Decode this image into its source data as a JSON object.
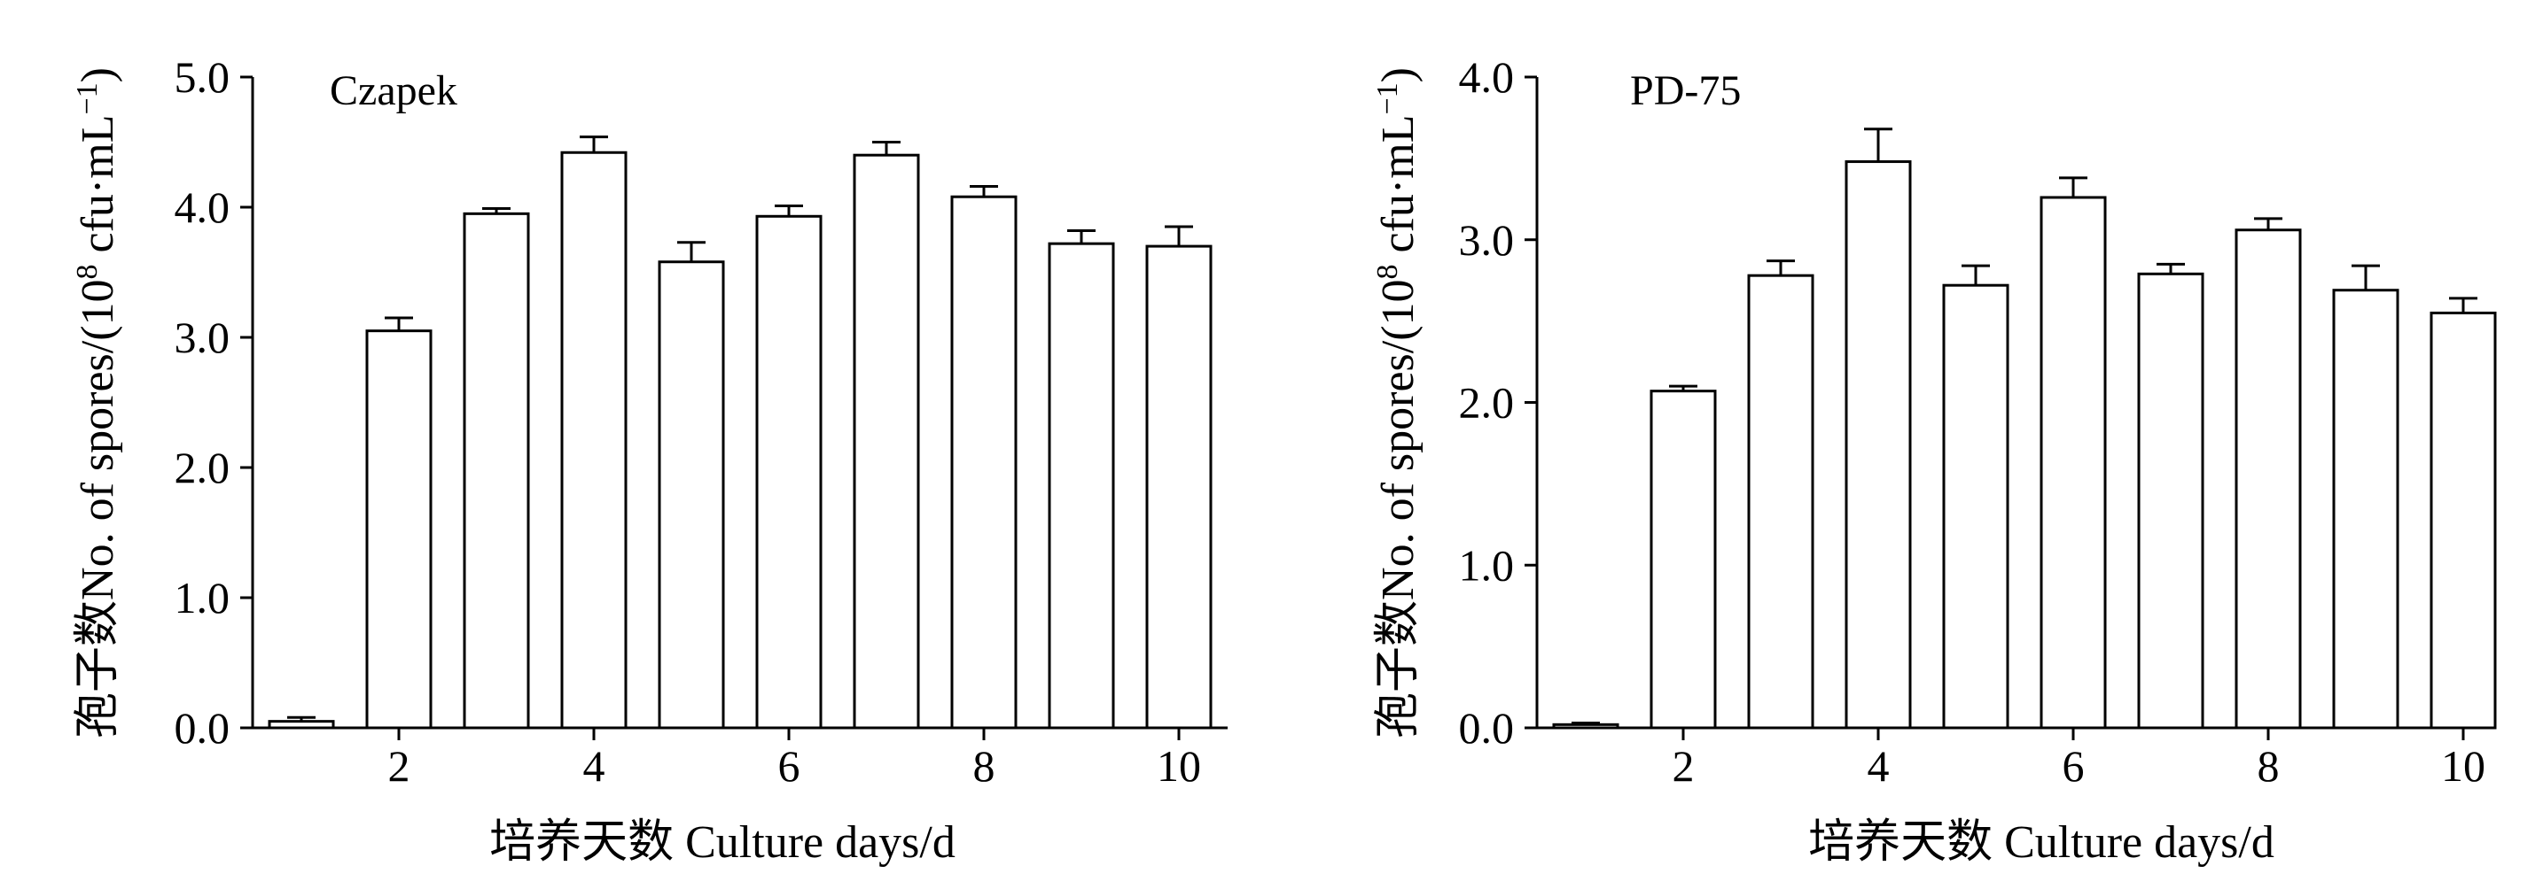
{
  "colors": {
    "bar_fill": "#ffffff",
    "stroke": "#000000",
    "background": "#ffffff"
  },
  "chart_data": [
    {
      "type": "bar",
      "panel_label": "Czapek",
      "ylabel_cn": "孢子数",
      "ylabel_en": "No. of spores/(10",
      "ylabel_exp": "8",
      "ylabel_unit": " cfu·mL",
      "ylabel_unit_exp": "−1",
      "ylabel_close": ")",
      "xlabel": "培养天数  Culture days/d",
      "categories": [
        1,
        2,
        3,
        4,
        5,
        6,
        7,
        8,
        9,
        10
      ],
      "values": [
        0.05,
        3.05,
        3.95,
        4.42,
        3.58,
        3.93,
        4.4,
        4.08,
        3.72,
        3.7
      ],
      "errors": [
        0.03,
        0.1,
        0.04,
        0.12,
        0.15,
        0.08,
        0.1,
        0.08,
        0.1,
        0.15
      ],
      "ylim": [
        0,
        5
      ],
      "yticks": [
        0,
        1,
        2,
        3,
        4,
        5
      ],
      "ytick_labels": [
        "0.0",
        "1.0",
        "2.0",
        "3.0",
        "4.0",
        "5.0"
      ],
      "xticks": [
        2,
        4,
        6,
        8,
        10
      ],
      "xtick_labels": [
        "2",
        "4",
        "6",
        "8",
        "10"
      ],
      "grid": false
    },
    {
      "type": "bar",
      "panel_label": "PD-75",
      "ylabel_cn": "孢子数",
      "ylabel_en": "No. of spores/(10",
      "ylabel_exp": "8",
      "ylabel_unit": " cfu·mL",
      "ylabel_unit_exp": "−1",
      "ylabel_close": ")",
      "xlabel": "培养天数  Culture days/d",
      "categories": [
        1,
        2,
        3,
        4,
        5,
        6,
        7,
        8,
        9,
        10
      ],
      "values": [
        0.02,
        2.07,
        2.78,
        3.48,
        2.72,
        3.26,
        2.79,
        3.06,
        2.69,
        2.55
      ],
      "errors": [
        0.01,
        0.03,
        0.09,
        0.2,
        0.12,
        0.12,
        0.06,
        0.07,
        0.15,
        0.09
      ],
      "ylim": [
        0,
        4
      ],
      "yticks": [
        0,
        1,
        2,
        3,
        4
      ],
      "ytick_labels": [
        "0.0",
        "1.0",
        "2.0",
        "3.0",
        "4.0"
      ],
      "xticks": [
        2,
        4,
        6,
        8,
        10
      ],
      "xtick_labels": [
        "2",
        "4",
        "6",
        "8",
        "10"
      ],
      "grid": false
    }
  ]
}
